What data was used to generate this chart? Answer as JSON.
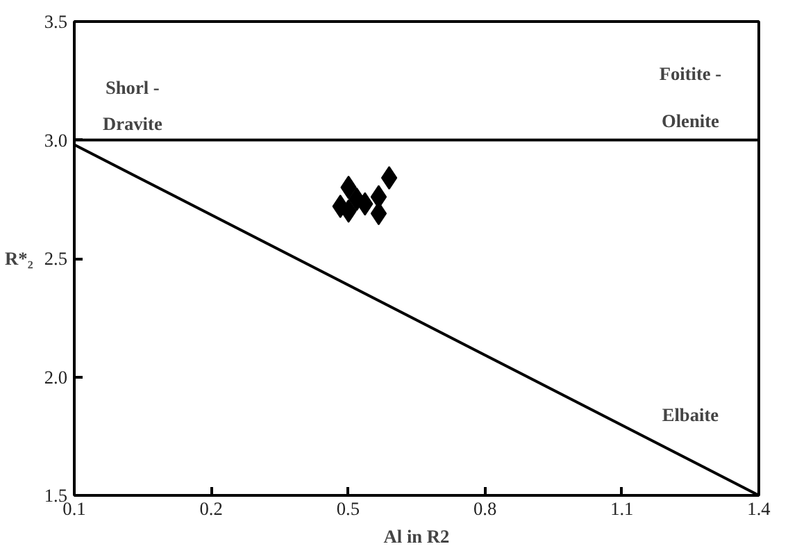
{
  "chart_data": {
    "type": "scatter",
    "xlabel": "Al in R2",
    "ylabel": "R*₂",
    "xlim": [
      -0.1,
      1.4
    ],
    "ylim": [
      1.5,
      3.5
    ],
    "xticks": [
      {
        "value": -0.1,
        "label": "0.1"
      },
      0.2,
      0.5,
      0.8,
      1.1,
      1.4
    ],
    "yticks": [
      1.5,
      {
        "value": 2.0,
        "label": "2.0"
      },
      2.5,
      {
        "value": 3.0,
        "label": "3.0"
      },
      3.5
    ],
    "grid": false,
    "series": [
      {
        "color": "#000000",
        "marker": "diamond",
        "x": [
          0.501,
          0.59,
          0.501,
          0.537,
          0.567,
          0.567,
          0.519,
          0.483
        ],
        "values": [
          2.8,
          2.84,
          2.7,
          2.73,
          2.76,
          2.69,
          2.75,
          2.72
        ]
      },
      {
        "type": "line",
        "color": "#000000",
        "x": [
          -0.1,
          1.4
        ],
        "values": [
          3.0,
          3.0
        ]
      },
      {
        "type": "line",
        "color": "#000000",
        "x": [
          -0.1,
          1.4
        ],
        "values": [
          2.98,
          1.5
        ]
      }
    ],
    "annotations": [
      "Shorl -",
      "Dravite",
      "Foitite -",
      "Olenite",
      "Elbaite"
    ]
  }
}
